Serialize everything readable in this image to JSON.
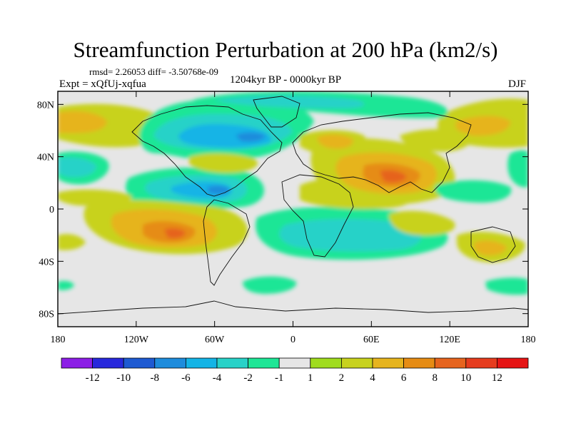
{
  "title": "Streamfunction Perturbation at 200 hPa (km2/s)",
  "stats": "rmsd= 2.26053 diff= -3.50768e-09",
  "experiment": "Expt = xQfUj-xqfua",
  "period": "1204kyr BP - 0000kyr BP",
  "season": "DJF",
  "chart_data": {
    "type": "heatmap",
    "variable": "Streamfunction Perturbation",
    "units": "km2/s",
    "level": "200 hPa",
    "x_range": [
      -180,
      180
    ],
    "y_range": [
      -90,
      90
    ],
    "x_ticks": [
      {
        "value": -180,
        "label": "180"
      },
      {
        "value": -120,
        "label": "120W"
      },
      {
        "value": -60,
        "label": "60W"
      },
      {
        "value": 0,
        "label": "0"
      },
      {
        "value": 60,
        "label": "60E"
      },
      {
        "value": 120,
        "label": "120E"
      },
      {
        "value": 180,
        "label": "180"
      }
    ],
    "y_ticks": [
      {
        "value": 80,
        "label": "80N"
      },
      {
        "value": 40,
        "label": "40N"
      },
      {
        "value": 0,
        "label": "0"
      },
      {
        "value": -40,
        "label": "40S"
      },
      {
        "value": -80,
        "label": "80S"
      }
    ],
    "colorbar": {
      "labels": [
        "-12",
        "-10",
        "-8",
        "-6",
        "-4",
        "-2",
        "-1",
        "1",
        "2",
        "4",
        "6",
        "8",
        "10",
        "12"
      ],
      "colors": [
        "#8c1ee6",
        "#2828dc",
        "#1e5ad2",
        "#1e8cdc",
        "#14b4e6",
        "#28d2c8",
        "#1ee696",
        "#e6e6e6",
        "#a0dc1e",
        "#c8d21e",
        "#e6b41e",
        "#e68c14",
        "#e6641e",
        "#e63c1e",
        "#e61414"
      ]
    },
    "features": [
      {
        "name": "positive",
        "lon": -160,
        "lat": 68,
        "value": 4
      },
      {
        "name": "negative",
        "lon": -90,
        "lat": 55,
        "value": -6
      },
      {
        "name": "negative",
        "lon": -75,
        "lat": 15,
        "value": -6
      },
      {
        "name": "negative",
        "lon": -165,
        "lat": 35,
        "value": -4
      },
      {
        "name": "positive",
        "lon": -95,
        "lat": -20,
        "value": 8
      },
      {
        "name": "positive",
        "lon": 75,
        "lat": 28,
        "value": 8
      },
      {
        "name": "positive",
        "lon": 30,
        "lat": 50,
        "value": 4
      },
      {
        "name": "negative",
        "lon": 55,
        "lat": -15,
        "value": -3
      },
      {
        "name": "positive",
        "lon": 150,
        "lat": -30,
        "value": 3
      },
      {
        "name": "negative",
        "lon": 165,
        "lat": 30,
        "value": -3
      }
    ]
  }
}
